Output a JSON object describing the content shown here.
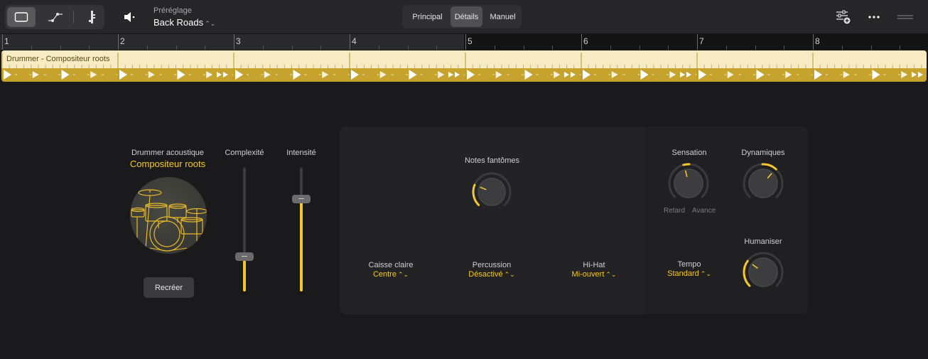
{
  "toolbar": {
    "view_buttons": [
      "single-window-icon",
      "automation-curve-icon",
      "score-note-icon"
    ],
    "speaker_icon": "speaker-icon",
    "preset_label": "Préréglage",
    "preset_name": "Back Roads",
    "views": [
      {
        "label": "Principal",
        "active": false
      },
      {
        "label": "Détails",
        "active": true
      },
      {
        "label": "Manuel",
        "active": false
      }
    ],
    "right_icons": [
      "mixer-add-icon",
      "more-icon",
      "drag-handle-icon"
    ]
  },
  "ruler": {
    "bars": [
      "1",
      "2",
      "3",
      "4",
      "5",
      "6",
      "7",
      "8"
    ]
  },
  "region": {
    "title": "Drummer - Compositeur roots"
  },
  "drummer": {
    "type_label": "Drummer acoustique",
    "name": "Compositeur roots",
    "recreate_label": "Recréer"
  },
  "sliders": {
    "complexity": {
      "label": "Complexité",
      "value": 0.28
    },
    "intensity": {
      "label": "Intensité",
      "value": 0.75
    }
  },
  "details": {
    "ghost_notes": {
      "label": "Notes fantômes",
      "value": 0.25
    },
    "snare": {
      "label": "Caisse claire",
      "value": "Centre"
    },
    "percussion": {
      "label": "Percussion",
      "value": "Désactivé"
    },
    "hihat": {
      "label": "Hi-Hat",
      "value": "Mi-ouvert"
    },
    "feel": {
      "label": "Sensation",
      "value": 0.45,
      "left_label": "Retard",
      "right_label": "Avance"
    },
    "dynamics": {
      "label": "Dynamiques",
      "value": 0.65
    },
    "tempo": {
      "label": "Tempo",
      "value": "Standard"
    },
    "humanize": {
      "label": "Humaniser",
      "value": 0.3
    }
  },
  "colors": {
    "accent": "#f4c82d",
    "region_top": "#f6ebc2",
    "region_bottom": "#c5a32c"
  }
}
